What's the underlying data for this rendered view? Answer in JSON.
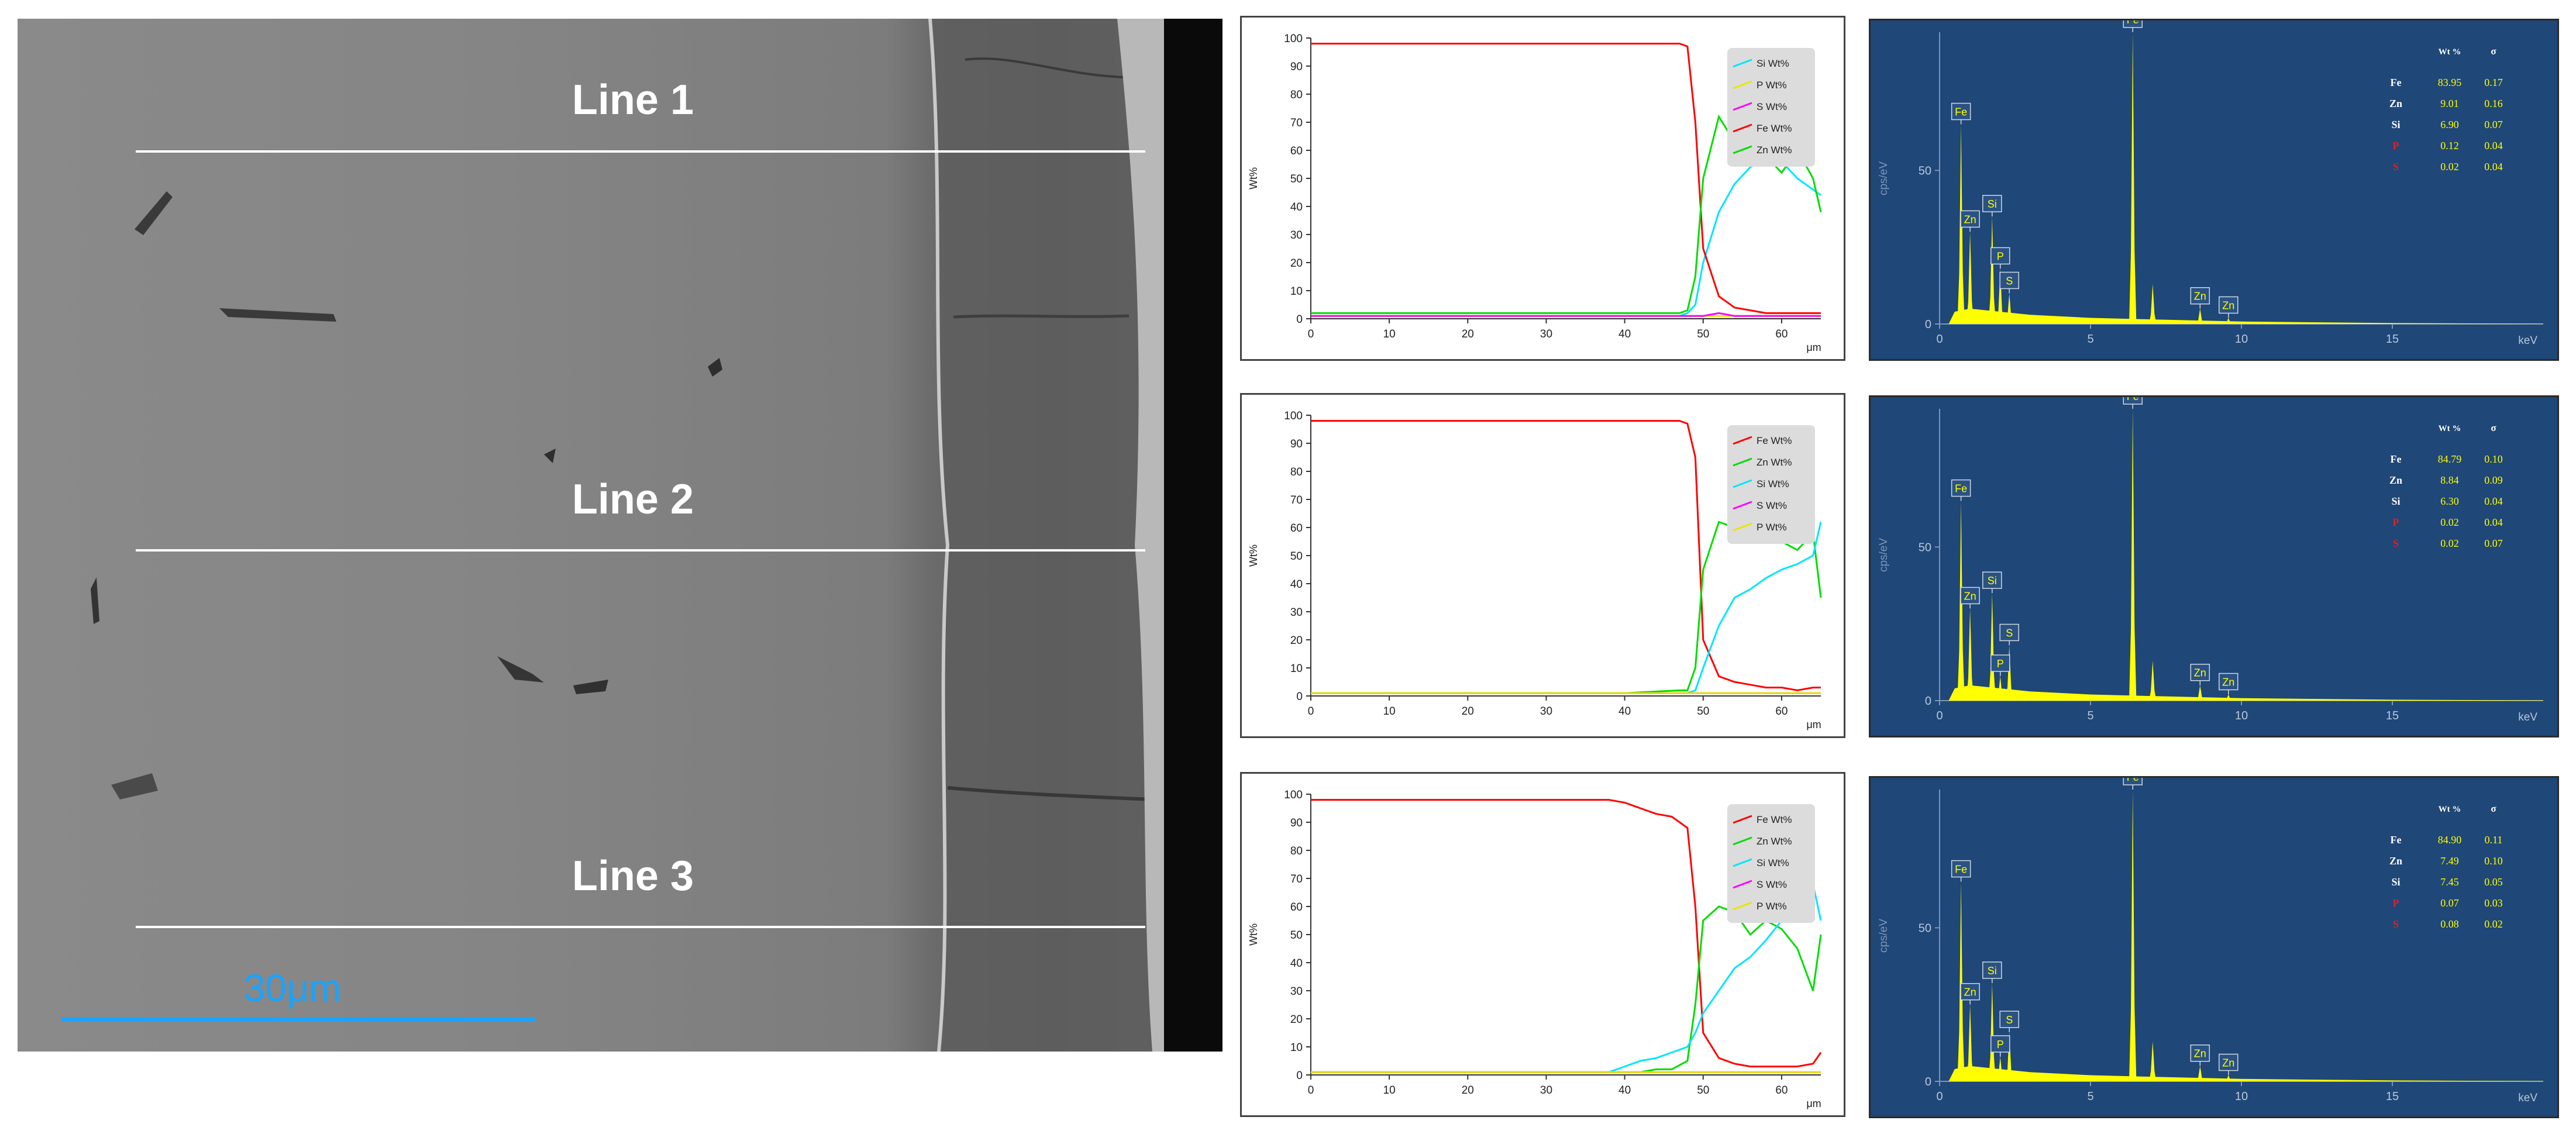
{
  "colors": {
    "fe": "#ff0000",
    "zn": "#00dd00",
    "si": "#00e5ff",
    "s": "#ff00ff",
    "p": "#e6e600",
    "eds_bg": "#1f4778",
    "eds_peak": "#ffff00",
    "scale_bar": "#1aa3ff"
  },
  "sem": {
    "line_labels": [
      "Line 1",
      "Line 2",
      "Line 3"
    ],
    "scale_label": "30μm"
  },
  "chart_data": [
    {
      "type": "line",
      "id": "profile-1",
      "ylabel": "Wt%",
      "x_unit": "μm",
      "xlim": [
        0,
        65
      ],
      "ylim": [
        0,
        100
      ],
      "x_ticks": [
        0,
        10,
        20,
        30,
        40,
        50,
        60
      ],
      "y_ticks": [
        0,
        10,
        20,
        30,
        40,
        50,
        60,
        70,
        80,
        90,
        100
      ],
      "legend": [
        "Si Wt%",
        "P Wt%",
        "S Wt%",
        "Fe Wt%",
        "Zn Wt%"
      ],
      "x": [
        0,
        10,
        20,
        30,
        40,
        47,
        48,
        49,
        50,
        52,
        54,
        56,
        58,
        60,
        62,
        64,
        65
      ],
      "series": [
        {
          "name": "Si Wt%",
          "color": "si",
          "values": [
            1,
            1,
            1,
            1,
            1,
            1,
            2,
            5,
            20,
            38,
            48,
            54,
            57,
            56,
            50,
            46,
            44
          ]
        },
        {
          "name": "P Wt%",
          "color": "p",
          "values": [
            1,
            1,
            1,
            1,
            1,
            1,
            1,
            1,
            1,
            1,
            1,
            1,
            1,
            1,
            1,
            1,
            1
          ]
        },
        {
          "name": "S Wt%",
          "color": "s",
          "values": [
            1,
            1,
            1,
            1,
            1,
            1,
            1,
            1,
            1,
            2,
            1,
            1,
            1,
            1,
            1,
            1,
            1
          ]
        },
        {
          "name": "Fe Wt%",
          "color": "fe",
          "values": [
            98,
            98,
            98,
            98,
            98,
            98,
            97,
            70,
            25,
            8,
            4,
            3,
            2,
            2,
            2,
            2,
            2
          ]
        },
        {
          "name": "Zn Wt%",
          "color": "zn",
          "values": [
            2,
            2,
            2,
            2,
            2,
            2,
            3,
            15,
            50,
            72,
            63,
            55,
            58,
            52,
            60,
            50,
            38
          ]
        }
      ]
    },
    {
      "type": "line",
      "id": "profile-2",
      "ylabel": "Wt%",
      "x_unit": "μm",
      "xlim": [
        0,
        65
      ],
      "ylim": [
        0,
        100
      ],
      "x_ticks": [
        0,
        10,
        20,
        30,
        40,
        50,
        60
      ],
      "y_ticks": [
        0,
        10,
        20,
        30,
        40,
        50,
        60,
        70,
        80,
        90,
        100
      ],
      "legend": [
        "Fe Wt%",
        "Zn Wt%",
        "Si Wt%",
        "S Wt%",
        "P Wt%"
      ],
      "x": [
        0,
        10,
        20,
        30,
        40,
        47,
        48,
        49,
        50,
        52,
        54,
        56,
        58,
        60,
        62,
        64,
        65
      ],
      "series": [
        {
          "name": "Fe Wt%",
          "color": "fe",
          "values": [
            98,
            98,
            98,
            98,
            98,
            98,
            97,
            85,
            20,
            7,
            5,
            4,
            3,
            3,
            2,
            3,
            3
          ]
        },
        {
          "name": "Zn Wt%",
          "color": "zn",
          "values": [
            1,
            1,
            1,
            1,
            1,
            2,
            2,
            10,
            45,
            62,
            60,
            58,
            62,
            55,
            52,
            58,
            35
          ]
        },
        {
          "name": "Si Wt%",
          "color": "si",
          "values": [
            1,
            1,
            1,
            1,
            1,
            1,
            1,
            2,
            10,
            25,
            35,
            38,
            42,
            45,
            47,
            50,
            62
          ]
        },
        {
          "name": "S Wt%",
          "color": "s",
          "values": [
            1,
            1,
            1,
            1,
            1,
            1,
            1,
            1,
            1,
            1,
            1,
            1,
            1,
            1,
            1,
            1,
            1
          ]
        },
        {
          "name": "P Wt%",
          "color": "p",
          "values": [
            1,
            1,
            1,
            1,
            1,
            1,
            1,
            1,
            1,
            1,
            1,
            1,
            1,
            1,
            1,
            1,
            1
          ]
        }
      ]
    },
    {
      "type": "line",
      "id": "profile-3",
      "ylabel": "Wt%",
      "x_unit": "μm",
      "xlim": [
        0,
        65
      ],
      "ylim": [
        0,
        100
      ],
      "x_ticks": [
        0,
        10,
        20,
        30,
        40,
        50,
        60
      ],
      "y_ticks": [
        0,
        10,
        20,
        30,
        40,
        50,
        60,
        70,
        80,
        90,
        100
      ],
      "legend": [
        "Fe Wt%",
        "Zn Wt%",
        "Si Wt%",
        "S Wt%",
        "P Wt%"
      ],
      "x": [
        0,
        10,
        20,
        30,
        38,
        40,
        42,
        44,
        46,
        48,
        49,
        50,
        52,
        54,
        56,
        58,
        60,
        62,
        64,
        65
      ],
      "series": [
        {
          "name": "Fe Wt%",
          "color": "fe",
          "values": [
            98,
            98,
            98,
            98,
            98,
            97,
            95,
            93,
            92,
            88,
            60,
            15,
            6,
            4,
            3,
            3,
            3,
            3,
            4,
            8
          ]
        },
        {
          "name": "Zn Wt%",
          "color": "zn",
          "values": [
            1,
            1,
            1,
            1,
            1,
            1,
            1,
            2,
            2,
            5,
            25,
            55,
            60,
            58,
            50,
            55,
            52,
            45,
            30,
            50
          ]
        },
        {
          "name": "Si Wt%",
          "color": "si",
          "values": [
            1,
            1,
            1,
            1,
            1,
            3,
            5,
            6,
            8,
            10,
            15,
            22,
            30,
            38,
            42,
            48,
            55,
            62,
            68,
            55
          ]
        },
        {
          "name": "S Wt%",
          "color": "s",
          "values": [
            1,
            1,
            1,
            1,
            1,
            1,
            1,
            1,
            1,
            1,
            1,
            1,
            1,
            1,
            1,
            1,
            1,
            1,
            1,
            1
          ]
        },
        {
          "name": "P Wt%",
          "color": "p",
          "values": [
            1,
            1,
            1,
            1,
            1,
            1,
            1,
            1,
            1,
            1,
            1,
            1,
            1,
            1,
            1,
            1,
            1,
            1,
            1,
            1
          ]
        }
      ]
    },
    {
      "type": "line",
      "id": "eds-1",
      "ylabel": "cps/eV",
      "x_unit": "keV",
      "xlim": [
        0,
        20
      ],
      "ylim": [
        0,
        95
      ],
      "x_ticks": [
        0,
        5,
        10,
        15
      ],
      "y_ticks": [
        0,
        50
      ],
      "peaks": [
        {
          "label": "Fe",
          "energy": 0.71,
          "height": 65
        },
        {
          "label": "Zn",
          "energy": 1.01,
          "height": 30
        },
        {
          "label": "Si",
          "energy": 1.74,
          "height": 35
        },
        {
          "label": "P",
          "energy": 2.01,
          "height": 18
        },
        {
          "label": "S",
          "energy": 2.31,
          "height": 10
        },
        {
          "label": "Fe",
          "energy": 6.4,
          "height": 95
        },
        {
          "label": "Zn",
          "energy": 8.63,
          "height": 5
        },
        {
          "label": "Zn",
          "energy": 9.57,
          "height": 2
        }
      ],
      "unlabeled_peaks": [
        {
          "energy": 7.06,
          "height": 13
        }
      ],
      "table": {
        "header": [
          "Wt %",
          "σ"
        ],
        "rows": [
          [
            "Fe",
            "83.95",
            "0.17"
          ],
          [
            "Zn",
            "9.01",
            "0.16"
          ],
          [
            "Si",
            "6.90",
            "0.07"
          ],
          [
            "P",
            "0.12",
            "0.04"
          ],
          [
            "S",
            "0.02",
            "0.04"
          ]
        ]
      }
    },
    {
      "type": "line",
      "id": "eds-2",
      "ylabel": "cps/eV",
      "x_unit": "keV",
      "xlim": [
        0,
        20
      ],
      "ylim": [
        0,
        95
      ],
      "x_ticks": [
        0,
        5,
        10,
        15
      ],
      "y_ticks": [
        0,
        50
      ],
      "peaks": [
        {
          "label": "Fe",
          "energy": 0.71,
          "height": 65
        },
        {
          "label": "Zn",
          "energy": 1.01,
          "height": 30
        },
        {
          "label": "Si",
          "energy": 1.74,
          "height": 35
        },
        {
          "label": "P",
          "energy": 2.01,
          "height": 8
        },
        {
          "label": "S",
          "energy": 2.31,
          "height": 18
        },
        {
          "label": "Fe",
          "energy": 6.4,
          "height": 95
        },
        {
          "label": "Zn",
          "energy": 8.63,
          "height": 5
        },
        {
          "label": "Zn",
          "energy": 9.57,
          "height": 2
        }
      ],
      "unlabeled_peaks": [
        {
          "energy": 7.06,
          "height": 13
        }
      ],
      "table": {
        "header": [
          "Wt %",
          "σ"
        ],
        "rows": [
          [
            "Fe",
            "84.79",
            "0.10"
          ],
          [
            "Zn",
            "8.84",
            "0.09"
          ],
          [
            "Si",
            "6.30",
            "0.04"
          ],
          [
            "P",
            "0.02",
            "0.04"
          ],
          [
            "S",
            "0.02",
            "0.07"
          ]
        ]
      }
    },
    {
      "type": "line",
      "id": "eds-3",
      "ylabel": "cps/eV",
      "x_unit": "keV",
      "xlim": [
        0,
        20
      ],
      "ylim": [
        0,
        95
      ],
      "x_ticks": [
        0,
        5,
        10,
        15
      ],
      "y_ticks": [
        0,
        50
      ],
      "peaks": [
        {
          "label": "Fe",
          "energy": 0.71,
          "height": 65
        },
        {
          "label": "Zn",
          "energy": 1.01,
          "height": 25
        },
        {
          "label": "Si",
          "energy": 1.74,
          "height": 32
        },
        {
          "label": "P",
          "energy": 2.01,
          "height": 8
        },
        {
          "label": "S",
          "energy": 2.31,
          "height": 16
        },
        {
          "label": "Fe",
          "energy": 6.4,
          "height": 95
        },
        {
          "label": "Zn",
          "energy": 8.63,
          "height": 5
        },
        {
          "label": "Zn",
          "energy": 9.57,
          "height": 2
        }
      ],
      "unlabeled_peaks": [
        {
          "energy": 7.06,
          "height": 13
        }
      ],
      "table": {
        "header": [
          "Wt %",
          "σ"
        ],
        "rows": [
          [
            "Fe",
            "84.90",
            "0.11"
          ],
          [
            "Zn",
            "7.49",
            "0.10"
          ],
          [
            "Si",
            "7.45",
            "0.05"
          ],
          [
            "P",
            "0.07",
            "0.03"
          ],
          [
            "S",
            "0.08",
            "0.02"
          ]
        ]
      }
    }
  ]
}
